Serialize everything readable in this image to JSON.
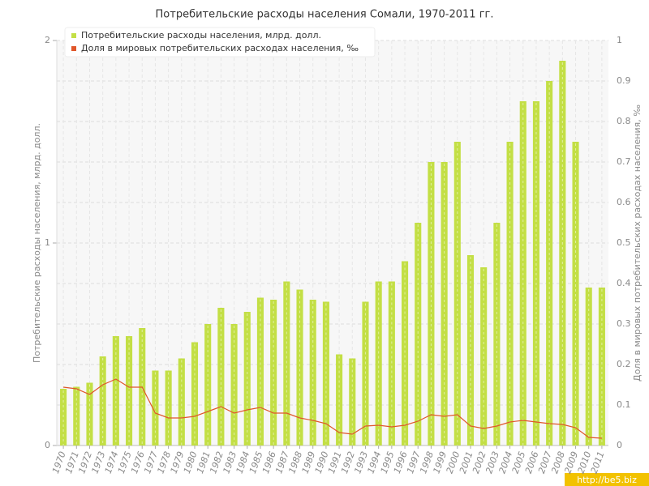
{
  "chart_data": {
    "type": "bar_line",
    "title": "Потребительские расходы населения Сомали, 1970-2011 гг.",
    "y_label": "Потребительские расходы населения, млрд. долл.",
    "y2_label": "Доля в мировых потребительских расходах населения, ‰",
    "watermark": "http://be5.biz",
    "categories": [
      "1970",
      "1971",
      "1972",
      "1973",
      "1974",
      "1975",
      "1976",
      "1977",
      "1978",
      "1979",
      "1980",
      "1981",
      "1982",
      "1983",
      "1984",
      "1985",
      "1986",
      "1987",
      "1988",
      "1989",
      "1990",
      "1991",
      "1992",
      "1993",
      "1994",
      "1995",
      "1996",
      "1997",
      "1998",
      "1999",
      "2000",
      "2001",
      "2002",
      "2003",
      "2004",
      "2005",
      "2006",
      "2007",
      "2008",
      "2009",
      "2010",
      "2011"
    ],
    "series": [
      {
        "name": "Потребительские расходы населения, млрд. долл.",
        "color": "#c3df45",
        "type": "bar",
        "values": [
          0.28,
          0.29,
          0.31,
          0.44,
          0.54,
          0.54,
          0.58,
          0.37,
          0.37,
          0.43,
          0.51,
          0.6,
          0.68,
          0.6,
          0.66,
          0.73,
          0.72,
          0.81,
          0.77,
          0.72,
          0.71,
          0.45,
          0.43,
          0.71,
          0.81,
          0.81,
          0.91,
          1.1,
          1.4,
          1.4,
          1.5,
          0.94,
          0.88,
          1.1,
          1.5,
          1.7,
          1.7,
          1.8,
          1.9,
          1.5,
          0.78,
          0.78
        ]
      },
      {
        "name": "Доля в мировых потребительских расходах населения, ‰",
        "color": "#e0562a",
        "type": "line",
        "axis": "y2",
        "values": [
          0.144,
          0.14,
          0.126,
          0.15,
          0.164,
          0.144,
          0.144,
          0.08,
          0.068,
          0.068,
          0.072,
          0.084,
          0.096,
          0.08,
          0.088,
          0.094,
          0.08,
          0.08,
          0.068,
          0.062,
          0.054,
          0.032,
          0.028,
          0.048,
          0.05,
          0.046,
          0.05,
          0.06,
          0.076,
          0.072,
          0.076,
          0.048,
          0.042,
          0.048,
          0.058,
          0.062,
          0.058,
          0.054,
          0.052,
          0.044,
          0.02,
          0.018
        ]
      }
    ],
    "ylim": [
      0,
      2
    ],
    "yticks": [
      0,
      1,
      2
    ],
    "y2lim": [
      0,
      1
    ],
    "y2ticks": [
      0,
      0.1,
      0.2,
      0.3,
      0.4,
      0.5,
      0.6,
      0.7,
      0.8,
      0.9,
      1
    ],
    "grid": true
  }
}
